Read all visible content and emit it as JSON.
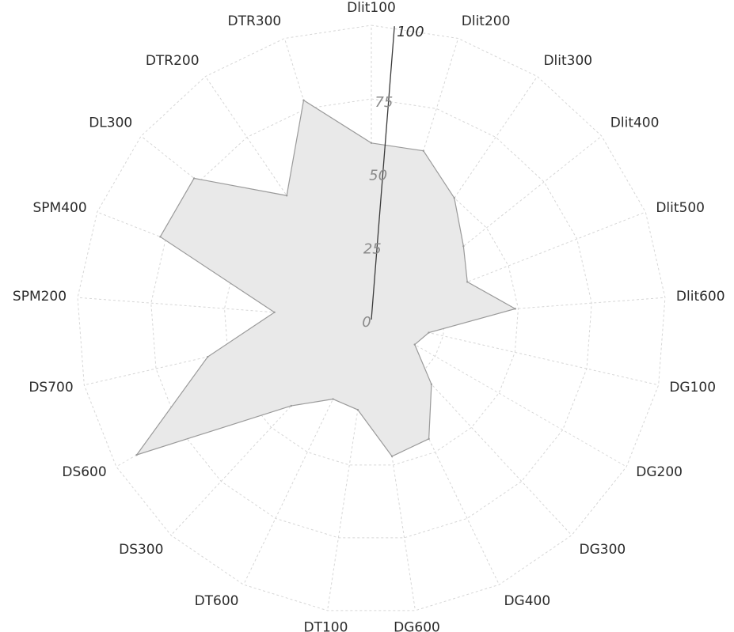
{
  "chart_data": {
    "type": "radar",
    "title": "",
    "categories": [
      "Dlit100",
      "Dlit200",
      "Dlit300",
      "Dlit400",
      "Dlit500",
      "Dlit600",
      "DG100",
      "DG200",
      "DG300",
      "DG400",
      "DG600",
      "DT100",
      "DT600",
      "DS300",
      "DS600",
      "DS700",
      "SPM200",
      "SPM400",
      "DL300",
      "DTR200",
      "DTR300"
    ],
    "series": [
      {
        "values": [
          60,
          60,
          50,
          40,
          35,
          49,
          20,
          17,
          30,
          45,
          47,
          31,
          30,
          40,
          92,
          57,
          33,
          77,
          77,
          51,
          78
        ]
      }
    ],
    "radial_axis": {
      "range": [
        0,
        100
      ],
      "ticks": [
        "0",
        "25",
        "50",
        "75",
        "100"
      ]
    },
    "grid": true,
    "legend": "none",
    "colors": {
      "fill": "#e9e9e9",
      "stroke": "#9a9a9a",
      "grid": "#d6d6d6",
      "axis": "#3a3a3a"
    }
  }
}
